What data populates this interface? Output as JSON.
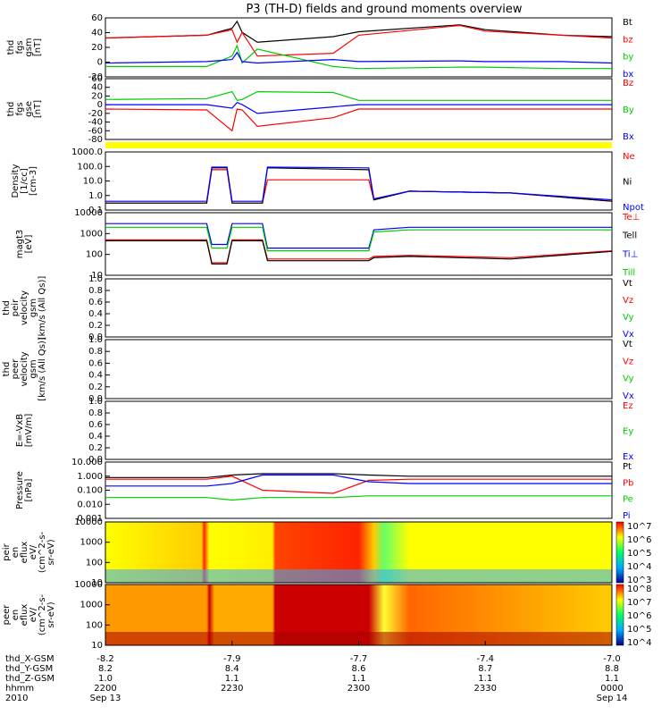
{
  "title": "P3 (TH-D) fields and ground moments overview",
  "colors": {
    "black": "#000000",
    "red": "#ff0000",
    "green": "#00cc00",
    "blue": "#0000ff",
    "yellow": "#ffff00"
  },
  "panels": [
    {
      "id": "fgs_gsm",
      "ylabel": [
        "thd",
        "fgs",
        "gsm",
        "[nT]"
      ],
      "yticks": [
        "60",
        "40",
        "20",
        "0",
        "-20"
      ],
      "legend": [
        {
          "text": "Bt",
          "color": "black"
        },
        {
          "text": "bz",
          "color": "red"
        },
        {
          "text": "by",
          "color": "green"
        },
        {
          "text": "bx",
          "color": "blue"
        }
      ]
    },
    {
      "id": "fgs_gse",
      "ylabel": [
        "thd",
        "fgs",
        "gse",
        "[nT]"
      ],
      "yticks": [
        "60",
        "40",
        "20",
        "0",
        "-20",
        "-40",
        "-60",
        "-80"
      ],
      "legend": [
        {
          "text": "Bz",
          "color": "red"
        },
        {
          "text": "By",
          "color": "green"
        },
        {
          "text": "Bx",
          "color": "blue"
        }
      ]
    },
    {
      "id": "density",
      "ylabel": [
        "Density",
        "[1/cc]",
        "[cm-3]"
      ],
      "yticks": [
        "1000.0",
        "100.0",
        "10.0",
        "1.0",
        "0.1"
      ],
      "legend": [
        {
          "text": "Ne",
          "color": "red"
        },
        {
          "text": "Ni",
          "color": "black"
        },
        {
          "text": "Npot",
          "color": "blue"
        }
      ]
    },
    {
      "id": "temp",
      "ylabel": [
        "magt3",
        "[eV]"
      ],
      "yticks": [
        "10000",
        "1000",
        "100",
        "10"
      ],
      "legend": [
        {
          "text": "Te⊥",
          "color": "red"
        },
        {
          "text": "Tell",
          "color": "black"
        },
        {
          "text": "Ti⊥",
          "color": "blue"
        },
        {
          "text": "Till",
          "color": "green"
        }
      ]
    },
    {
      "id": "pei_vel",
      "ylabel": [
        "thd",
        "peir",
        "velocity",
        "gsm",
        "[km/s (All Qs)]"
      ],
      "yticks": [
        "1.0",
        "0.8",
        "0.6",
        "0.4",
        "0.2",
        "0.0"
      ],
      "legend": [
        {
          "text": "Vt",
          "color": "black"
        },
        {
          "text": "Vz",
          "color": "red"
        },
        {
          "text": "Vy",
          "color": "green"
        },
        {
          "text": "Vx",
          "color": "blue"
        }
      ]
    },
    {
      "id": "pee_vel",
      "ylabel": [
        "thd",
        "peer",
        "velocity",
        "gsm",
        "[km/s (All Qs)]"
      ],
      "yticks": [
        "1.0",
        "0.8",
        "0.6",
        "0.4",
        "0.2",
        "0.0"
      ],
      "legend": [
        {
          "text": "Vt",
          "color": "black"
        },
        {
          "text": "Vz",
          "color": "red"
        },
        {
          "text": "Vy",
          "color": "green"
        },
        {
          "text": "Vx",
          "color": "blue"
        }
      ]
    },
    {
      "id": "efield",
      "ylabel": [
        "E=-VxB",
        "[mV/m]"
      ],
      "yticks": [
        "1.0",
        "0.8",
        "0.6",
        "0.4",
        "0.2",
        "0.0"
      ],
      "legend": [
        {
          "text": "Ez",
          "color": "red"
        },
        {
          "text": "Ey",
          "color": "green"
        },
        {
          "text": "Ex",
          "color": "blue"
        }
      ]
    },
    {
      "id": "pressure",
      "ylabel": [
        "Pressure",
        "[nPa]"
      ],
      "yticks": [
        "10.000",
        "1.000",
        "0.100",
        "0.010",
        "0.001"
      ],
      "legend": [
        {
          "text": "Pt",
          "color": "black"
        },
        {
          "text": "Pb",
          "color": "red"
        },
        {
          "text": "Pe",
          "color": "green"
        },
        {
          "text": "Pi",
          "color": "blue"
        }
      ]
    },
    {
      "id": "peir_spec",
      "ylabel": [
        "thd",
        "peir",
        "en",
        "eflux",
        "eV/",
        "(cm^2-s-",
        "sr-eV)"
      ],
      "yticks": [
        "10000",
        "1000",
        "100",
        "10"
      ],
      "colorbar": [
        "10^7",
        "10^6",
        "10^5",
        "10^4",
        "10^3"
      ]
    },
    {
      "id": "peer_spec",
      "ylabel": [
        "thd",
        "peer",
        "en",
        "eflux",
        "eV/",
        "(cm^2-s-",
        "sr-eV)"
      ],
      "yticks": [
        "10000",
        "1000",
        "100",
        "10"
      ],
      "colorbar": [
        "10^8",
        "10^7",
        "10^6",
        "10^5",
        "10^4"
      ]
    }
  ],
  "footer": {
    "labels": [
      "thd_X-GSM",
      "thd_Y-GSM",
      "thd_Z-GSM",
      "hhmm",
      "2010"
    ],
    "columns": [
      {
        "x": "-8.2",
        "y": "8.2",
        "z": "1.0",
        "time": "2200",
        "date": "Sep 13"
      },
      {
        "x": "-7.9",
        "y": "8.4",
        "z": "1.1",
        "time": "2230",
        "date": ""
      },
      {
        "x": "-7.7",
        "y": "8.6",
        "z": "1.1",
        "time": "2300",
        "date": ""
      },
      {
        "x": "-7.4",
        "y": "8.7",
        "z": "1.1",
        "time": "2330",
        "date": ""
      },
      {
        "x": "-7.0",
        "y": "8.8",
        "z": "1.1",
        "time": "0000",
        "date": "Sep 14"
      }
    ]
  },
  "chart_data": {
    "type": "line",
    "title": "P3 (TH-D) fields and ground moments overview",
    "x_range": [
      "2010-09-13 22:00",
      "2010-09-14 00:00"
    ],
    "x_ticks": [
      "2200",
      "2230",
      "2300",
      "2330",
      "0000"
    ],
    "panels": [
      {
        "name": "thd fgs gsm [nT]",
        "ylim": [
          -20,
          65
        ],
        "scale": "linear",
        "x": [
          0.0,
          0.2,
          0.25,
          0.26,
          0.27,
          0.3,
          0.45,
          0.5,
          0.7,
          0.75,
          0.9,
          1.0
        ],
        "series": [
          {
            "name": "Bt",
            "values": [
              36,
              40,
              50,
              60,
              44,
              30,
              38,
              45,
              55,
              48,
              40,
              38
            ]
          },
          {
            "name": "bz",
            "values": [
              36,
              40,
              48,
              30,
              44,
              10,
              14,
              40,
              54,
              46,
              40,
              36
            ]
          },
          {
            "name": "by",
            "values": [
              -5,
              -5,
              10,
              25,
              0,
              20,
              -5,
              -8,
              -6,
              -6,
              -8,
              -8
            ]
          },
          {
            "name": "bx",
            "values": [
              0,
              2,
              5,
              15,
              2,
              0,
              5,
              2,
              3,
              2,
              2,
              0
            ]
          }
        ]
      },
      {
        "name": "thd fgs gse [nT]",
        "ylim": [
          -80,
          60
        ],
        "scale": "linear",
        "x": [
          0.0,
          0.2,
          0.25,
          0.26,
          0.27,
          0.3,
          0.45,
          0.5,
          0.7,
          1.0
        ],
        "series": [
          {
            "name": "Bz",
            "values": [
              -10,
              -12,
              -60,
              -10,
              -12,
              -50,
              -30,
              -10,
              -10,
              -10
            ]
          },
          {
            "name": "By",
            "values": [
              12,
              14,
              30,
              10,
              12,
              30,
              28,
              10,
              10,
              10
            ]
          },
          {
            "name": "Bx",
            "values": [
              0,
              0,
              -8,
              5,
              0,
              -20,
              -5,
              0,
              0,
              0
            ]
          }
        ]
      },
      {
        "name": "Density [1/cc]",
        "ylim": [
          0.1,
          1000
        ],
        "scale": "log",
        "x": [
          0.0,
          0.2,
          0.21,
          0.24,
          0.25,
          0.31,
          0.32,
          0.52,
          0.53,
          0.6,
          0.8,
          1.0
        ],
        "series": [
          {
            "name": "Ne",
            "values": [
              0.3,
              0.3,
              60,
              60,
              0.3,
              0.3,
              12,
              12,
              0.5,
              2,
              1.5,
              0.4
            ]
          },
          {
            "name": "Ni",
            "values": [
              0.3,
              0.3,
              80,
              80,
              0.3,
              0.3,
              80,
              60,
              0.5,
              2,
              1.5,
              0.4
            ]
          },
          {
            "name": "Npot",
            "values": [
              0.4,
              0.4,
              90,
              90,
              0.4,
              0.4,
              90,
              80,
              0.6,
              2,
              1.5,
              0.5
            ]
          }
        ]
      },
      {
        "name": "magt3 [eV]",
        "ylim": [
          10,
          10000
        ],
        "scale": "log",
        "x": [
          0.0,
          0.2,
          0.21,
          0.24,
          0.25,
          0.31,
          0.32,
          0.52,
          0.53,
          0.6,
          0.8,
          1.0
        ],
        "series": [
          {
            "name": "Te⊥",
            "values": [
              500,
              500,
              40,
              40,
              500,
              500,
              60,
              60,
              80,
              90,
              70,
              150
            ]
          },
          {
            "name": "Tell",
            "values": [
              450,
              450,
              35,
              35,
              450,
              450,
              50,
              50,
              70,
              80,
              60,
              140
            ]
          },
          {
            "name": "Ti⊥",
            "values": [
              3000,
              3000,
              300,
              300,
              3000,
              3000,
              200,
              200,
              1500,
              2000,
              2000,
              2000
            ]
          },
          {
            "name": "Till",
            "values": [
              2000,
              2000,
              200,
              200,
              2000,
              2000,
              150,
              150,
              1200,
              1500,
              1500,
              1500
            ]
          }
        ]
      },
      {
        "name": "thd peir velocity gsm",
        "ylim": [
          0,
          1
        ],
        "scale": "linear",
        "x": [],
        "series": []
      },
      {
        "name": "thd peer velocity gsm",
        "ylim": [
          0,
          1
        ],
        "scale": "linear",
        "x": [],
        "series": []
      },
      {
        "name": "E=-VxB [mV/m]",
        "ylim": [
          0,
          1
        ],
        "scale": "linear",
        "x": [],
        "series": []
      },
      {
        "name": "Pressure [nPa]",
        "ylim": [
          0.001,
          10
        ],
        "scale": "log",
        "x": [
          0.0,
          0.2,
          0.25,
          0.31,
          0.45,
          0.52,
          0.6,
          1.0
        ],
        "series": [
          {
            "name": "Pt",
            "values": [
              0.8,
              0.8,
              1.2,
              1.5,
              1.5,
              1.2,
              1.0,
              1.0
            ]
          },
          {
            "name": "Pb",
            "values": [
              0.6,
              0.6,
              1.0,
              0.1,
              0.06,
              0.5,
              0.6,
              0.6
            ]
          },
          {
            "name": "Pe",
            "values": [
              0.03,
              0.03,
              0.02,
              0.03,
              0.03,
              0.04,
              0.04,
              0.04
            ]
          },
          {
            "name": "Pi",
            "values": [
              0.2,
              0.2,
              0.3,
              1.2,
              1.2,
              0.4,
              0.3,
              0.3
            ]
          }
        ]
      }
    ]
  }
}
